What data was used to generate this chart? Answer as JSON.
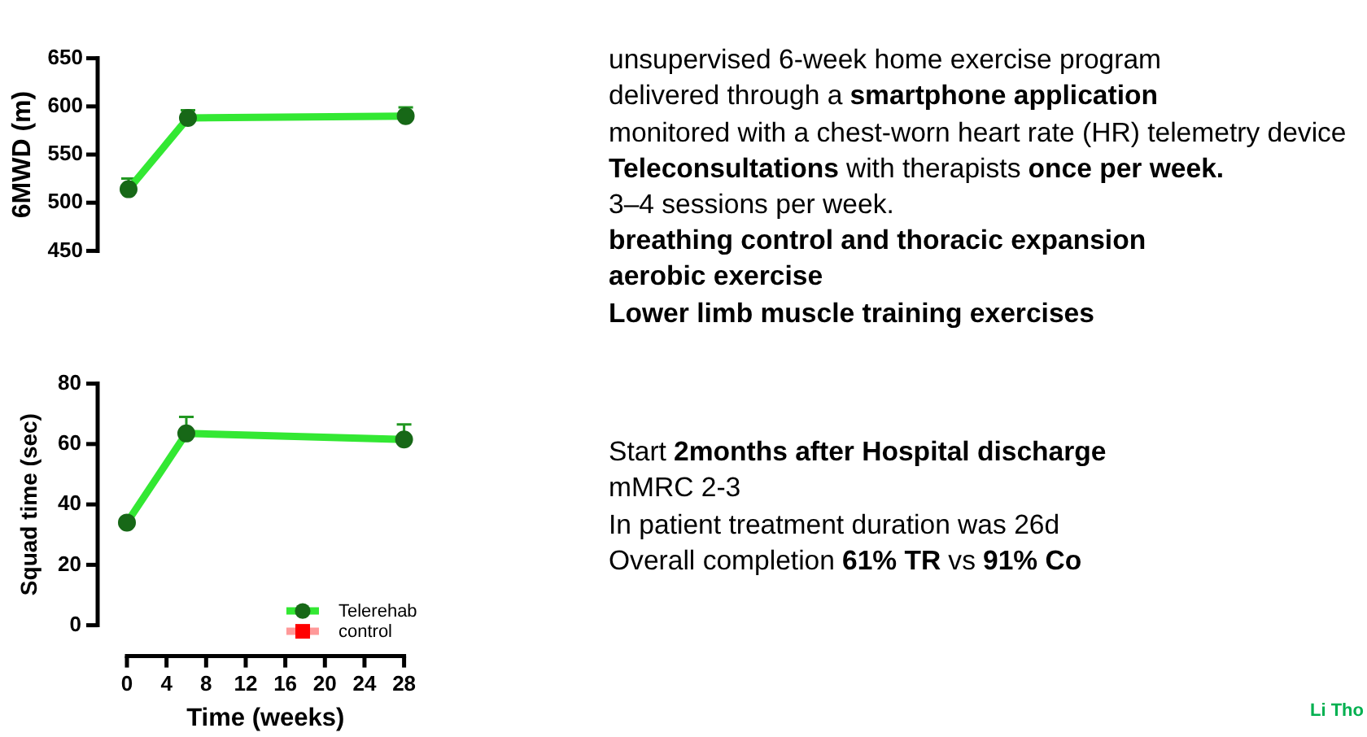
{
  "chart_data": [
    {
      "type": "line",
      "x": [
        0,
        6,
        28
      ],
      "xlim": [
        0,
        28
      ],
      "ylim": [
        450,
        650
      ],
      "yticks": [
        450,
        500,
        550,
        600,
        650
      ],
      "ylabel": "6MWD (m)",
      "marker": "circle",
      "grid": false,
      "legend": false,
      "tick_labels": "y",
      "series": [
        {
          "color": "#33e833",
          "values": [
            514,
            588,
            590
          ],
          "errors": [
            [
              514,
              525
            ],
            [
              588,
              596
            ],
            [
              590,
              599
            ]
          ]
        }
      ]
    },
    {
      "type": "line",
      "x": [
        0,
        6,
        28
      ],
      "xlim": [
        0,
        28
      ],
      "xticks": [
        0,
        4,
        8,
        12,
        16,
        20,
        24,
        28
      ],
      "ylim": [
        0,
        80
      ],
      "yticks": [
        0,
        20,
        40,
        60,
        80
      ],
      "xlabel": "Time (weeks)",
      "ylabel": "Squad time (sec)",
      "marker": "circle",
      "grid": false,
      "legend": "bottom right",
      "series": [
        {
          "name": "Telerehab",
          "color": "#33e833",
          "values": [
            34,
            63.5,
            61.5
          ],
          "errors": [
            null,
            [
              63.5,
              69
            ],
            [
              61.5,
              66.5
            ]
          ]
        },
        {
          "name": "control",
          "color": "#ff0000",
          "marker": "square",
          "values": [
            null,
            null,
            null
          ]
        }
      ]
    },
    {
      "type": "other",
      "annotations": [
        "unsupervised 6-week home exercise program",
        "delivered through a",
        "smartphone application",
        "monitored with a chest-worn heart rate (HR) telemetry device",
        "Teleconsultations",
        "with therapists",
        "once per week.",
        "3–4 sessions per week.",
        "breathing control and thoracic expansion",
        "aerobic exercise",
        "Lower limb muscle training exercises",
        "Start",
        "2months after Hospital discharge",
        "mMRC 2-3",
        "In patient treatment duration was 26d",
        "Overall completion",
        "61% TR",
        "vs",
        "91% Co",
        "Li Tho"
      ]
    }
  ]
}
